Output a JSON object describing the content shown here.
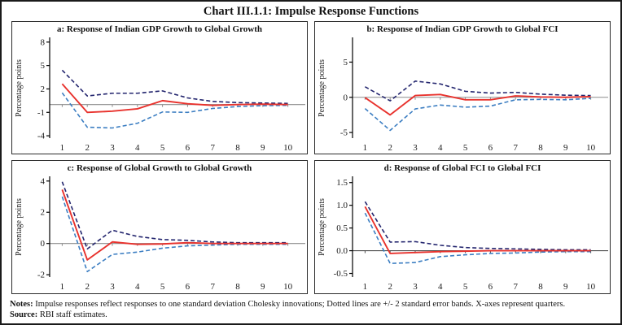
{
  "title": "Chart III.1.1: Impulse Response Functions",
  "notes": {
    "notes_label": "Notes:",
    "notes_text": " Impulse responses reflect responses to one standard deviation Cholesky innovations; Dotted lines are +/- 2 standard error bands. X-axes represent quarters.",
    "source_label": "Source:",
    "source_text": " RBI staff estimates."
  },
  "colors": {
    "response": "#e8322d",
    "upper_band": "#23256e",
    "lower_band": "#3c7ec2",
    "axis": "#000000"
  },
  "chart_data": [
    {
      "id": "a",
      "type": "line",
      "title": "a: Response of Indian GDP Growth to Global Growth",
      "ylabel": "Percentage points",
      "x": [
        1,
        2,
        3,
        4,
        5,
        6,
        7,
        8,
        9,
        10
      ],
      "yticks": [
        8,
        5,
        2,
        -1,
        -4
      ],
      "ytick_labels": [
        "8",
        "5",
        "2",
        "-1",
        "-4"
      ],
      "ylim": [
        -4.3,
        8.5
      ],
      "zero_line_color": "#8c8c8c",
      "legend": "none",
      "grid": false,
      "series": [
        {
          "name": "+2 s.e. band",
          "style": "dashed",
          "color_key": "upper_band",
          "values": [
            4.4,
            1.1,
            1.45,
            1.45,
            1.75,
            0.85,
            0.4,
            0.25,
            0.2,
            0.15
          ]
        },
        {
          "name": "-2 s.e. band",
          "style": "dashed",
          "color_key": "lower_band",
          "values": [
            1.5,
            -2.9,
            -3.0,
            -2.4,
            -0.95,
            -1.0,
            -0.5,
            -0.25,
            -0.15,
            -0.1
          ]
        },
        {
          "name": "response",
          "style": "solid",
          "color_key": "response",
          "values": [
            2.65,
            -1.0,
            -0.85,
            -0.55,
            0.5,
            0.1,
            -0.1,
            0.0,
            0.05,
            0.0
          ]
        }
      ]
    },
    {
      "id": "b",
      "type": "line",
      "title": "b: Response of Indian GDP Growth to Global FCI",
      "ylabel": "Percentage points",
      "x": [
        1,
        2,
        3,
        4,
        5,
        6,
        7,
        8,
        9,
        10
      ],
      "yticks": [
        5,
        0,
        -5
      ],
      "ytick_labels": [
        "5",
        "0",
        "-5"
      ],
      "ylim": [
        -5.8,
        8.4
      ],
      "zero_line_color": "#8c8c8c",
      "legend": "none",
      "grid": false,
      "series": [
        {
          "name": "+2 s.e. band",
          "style": "dashed",
          "color_key": "upper_band",
          "values": [
            1.5,
            -0.5,
            2.3,
            1.9,
            0.85,
            0.6,
            0.7,
            0.45,
            0.3,
            0.25
          ]
        },
        {
          "name": "-2 s.e. band",
          "style": "dashed",
          "color_key": "lower_band",
          "values": [
            -1.6,
            -4.7,
            -1.65,
            -1.1,
            -1.4,
            -1.25,
            -0.35,
            -0.3,
            -0.35,
            -0.15
          ]
        },
        {
          "name": "response",
          "style": "solid",
          "color_key": "response",
          "values": [
            -0.05,
            -2.5,
            0.25,
            0.4,
            -0.35,
            -0.35,
            0.2,
            0.05,
            0.0,
            0.1
          ]
        }
      ]
    },
    {
      "id": "c",
      "type": "line",
      "title": "c: Response of Global Growth to Global Growth",
      "ylabel": "Percentage points",
      "x": [
        1,
        2,
        3,
        4,
        5,
        6,
        7,
        8,
        9,
        10
      ],
      "yticks": [
        4,
        2,
        0,
        -2
      ],
      "ytick_labels": [
        "4",
        "2",
        "0",
        "-2"
      ],
      "ylim": [
        -2.15,
        4.25
      ],
      "zero_line_color": "#8c8c8c",
      "legend": "none",
      "grid": false,
      "series": [
        {
          "name": "+2 s.e. band",
          "style": "dashed",
          "color_key": "upper_band",
          "values": [
            3.95,
            -0.35,
            0.85,
            0.45,
            0.25,
            0.2,
            0.1,
            0.05,
            0.05,
            0.05
          ]
        },
        {
          "name": "-2 s.e. band",
          "style": "dashed",
          "color_key": "lower_band",
          "values": [
            3.0,
            -1.8,
            -0.7,
            -0.55,
            -0.3,
            -0.15,
            -0.1,
            -0.05,
            -0.05,
            -0.05
          ]
        },
        {
          "name": "response",
          "style": "solid",
          "color_key": "response",
          "values": [
            3.45,
            -1.05,
            0.1,
            -0.05,
            -0.03,
            0.05,
            0.0,
            0.0,
            0.0,
            0.0
          ]
        }
      ]
    },
    {
      "id": "d",
      "type": "line",
      "title": "d: Response of Global FCI to Global FCI",
      "ylabel": "Percentage points",
      "x": [
        1,
        2,
        3,
        4,
        5,
        6,
        7,
        8,
        9,
        10
      ],
      "yticks": [
        1.5,
        1.0,
        0.5,
        0.0,
        -0.5
      ],
      "ytick_labels": [
        "1.5",
        "1.0",
        "0.5",
        "0.0",
        "-0.5"
      ],
      "ylim": [
        -0.58,
        1.62
      ],
      "zero_line_color": "#4d4d4d",
      "legend": "none",
      "grid": false,
      "series": [
        {
          "name": "+2 s.e. band",
          "style": "dashed",
          "color_key": "upper_band",
          "values": [
            1.08,
            0.19,
            0.2,
            0.12,
            0.07,
            0.05,
            0.04,
            0.03,
            0.02,
            0.02
          ]
        },
        {
          "name": "-2 s.e. band",
          "style": "dashed",
          "color_key": "lower_band",
          "values": [
            0.83,
            -0.28,
            -0.26,
            -0.13,
            -0.09,
            -0.06,
            -0.05,
            -0.03,
            -0.02,
            -0.02
          ]
        },
        {
          "name": "response",
          "style": "solid",
          "color_key": "response",
          "values": [
            0.97,
            -0.06,
            -0.04,
            -0.02,
            -0.01,
            0.0,
            0.0,
            0.0,
            0.0,
            0.0
          ]
        }
      ]
    }
  ]
}
